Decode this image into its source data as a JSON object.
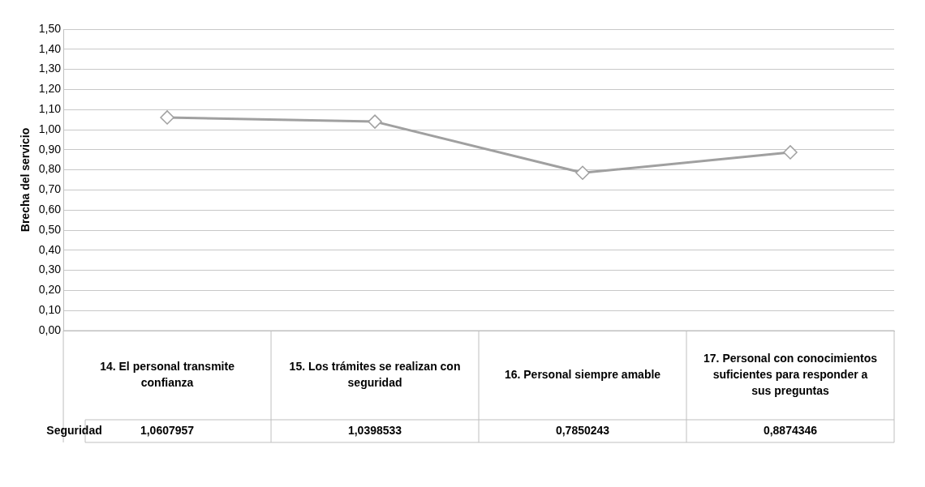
{
  "chart_data": {
    "type": "line",
    "ylabel": "Brecha del servicio",
    "categories": [
      "14. El personal transmite confianza",
      "15. Los trámites se realizan con seguridad",
      "16. Personal siempre amable",
      "17. Personal con conocimientos suficientes para responder a sus preguntas"
    ],
    "series": [
      {
        "name": "Seguridad",
        "color": "#a0a0a0",
        "values": [
          1.0607957,
          1.0398533,
          0.7850243,
          0.8874346
        ],
        "value_labels": [
          "1,0607957",
          "1,0398533",
          "0,7850243",
          "0,8874346"
        ]
      }
    ],
    "ylim": [
      0,
      1.5
    ],
    "yticks": [
      {
        "value": 0,
        "label": "0,00"
      },
      {
        "value": 0.1,
        "label": "0,10"
      },
      {
        "value": 0.2,
        "label": "0,20"
      },
      {
        "value": 0.3,
        "label": "0,30"
      },
      {
        "value": 0.4,
        "label": "0,40"
      },
      {
        "value": 0.5,
        "label": "0,50"
      },
      {
        "value": 0.6,
        "label": "0,60"
      },
      {
        "value": 0.7,
        "label": "0,70"
      },
      {
        "value": 0.8,
        "label": "0,80"
      },
      {
        "value": 0.9,
        "label": "0,90"
      },
      {
        "value": 1.0,
        "label": "1,00"
      },
      {
        "value": 1.1,
        "label": "1,10"
      },
      {
        "value": 1.2,
        "label": "1,20"
      },
      {
        "value": 1.3,
        "label": "1,30"
      },
      {
        "value": 1.4,
        "label": "1,40"
      },
      {
        "value": 1.5,
        "label": "1,50"
      }
    ],
    "grid": "y",
    "legend": false,
    "marker": "diamond",
    "line_style": "solid"
  }
}
